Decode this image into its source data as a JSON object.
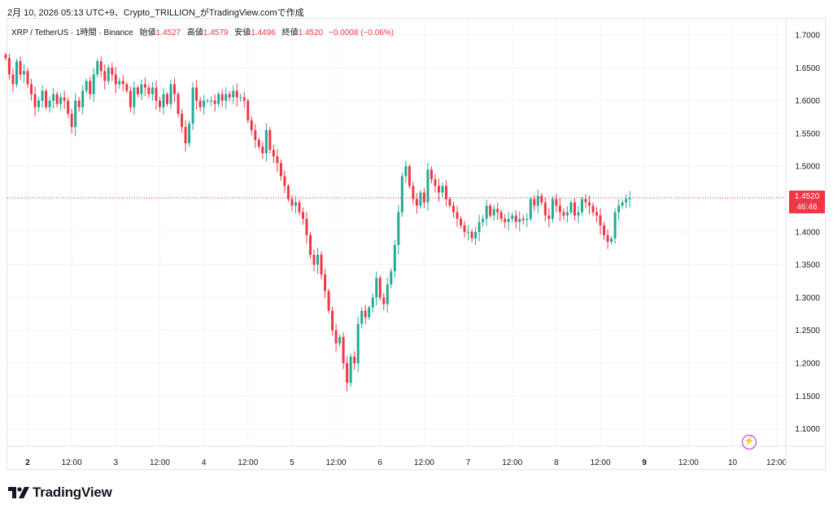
{
  "header": {
    "caption": "2月 10, 2026 05:13 UTC+9、Crypto_TRILLION_がTradingView.comで作成"
  },
  "legend": {
    "symbol": "XRP / TetherUS · 1時間 · Binance",
    "open_label": "始値",
    "open_value": "1.4527",
    "high_label": "高値",
    "high_value": "1.4579",
    "low_label": "安値",
    "low_value": "1.4496",
    "close_label": "終値",
    "close_value": "1.4520",
    "change": "−0.0008 (−0.06%)"
  },
  "price_tag": {
    "price": "1.4520",
    "countdown": "46:46"
  },
  "brand": {
    "name": "TradingView"
  },
  "colors": {
    "up": "#22ab94",
    "down": "#f23645",
    "grid": "#f0f3fa",
    "text": "#131722",
    "alert": "#b02dd9"
  },
  "icons": {
    "alert": "lightning-bolt-icon",
    "logo": "tradingview-logo-icon"
  },
  "chart_data": {
    "type": "candlestick",
    "interval": "1時間",
    "grid": true,
    "ylim": [
      1.08,
      1.715
    ],
    "y_ticks": [
      "1.7000",
      "1.6500",
      "1.6000",
      "1.5500",
      "1.5000",
      "1.4500",
      "1.4000",
      "1.3500",
      "1.3000",
      "1.2500",
      "1.2000",
      "1.1500",
      "1.1000"
    ],
    "x_ticks": [
      {
        "label": "2",
        "hour": 0,
        "bold": true
      },
      {
        "label": "12:00",
        "hour": 12
      },
      {
        "label": "3",
        "hour": 24
      },
      {
        "label": "12:00",
        "hour": 36
      },
      {
        "label": "4",
        "hour": 48
      },
      {
        "label": "12:00",
        "hour": 60
      },
      {
        "label": "5",
        "hour": 72
      },
      {
        "label": "12:00",
        "hour": 84
      },
      {
        "label": "6",
        "hour": 96
      },
      {
        "label": "12:00",
        "hour": 108
      },
      {
        "label": "7",
        "hour": 120
      },
      {
        "label": "12:00",
        "hour": 132
      },
      {
        "label": "8",
        "hour": 144
      },
      {
        "label": "12:00",
        "hour": 156
      },
      {
        "label": "9",
        "hour": 168,
        "bold": true
      },
      {
        "label": "12:00",
        "hour": 180
      },
      {
        "label": "10",
        "hour": 192
      },
      {
        "label": "12:00",
        "hour": 204
      }
    ],
    "last_price": 1.452,
    "first_hour": -6,
    "closes": [
      1.665,
      1.64,
      1.625,
      1.66,
      1.64,
      1.645,
      1.625,
      1.61,
      1.59,
      1.6,
      1.615,
      1.59,
      1.6,
      1.61,
      1.595,
      1.605,
      1.6,
      1.58,
      1.56,
      1.6,
      1.59,
      1.615,
      1.63,
      1.61,
      1.64,
      1.66,
      1.645,
      1.63,
      1.65,
      1.64,
      1.625,
      1.63,
      1.625,
      1.615,
      1.59,
      1.62,
      1.61,
      1.625,
      1.62,
      1.61,
      1.62,
      1.6,
      1.59,
      1.61,
      1.595,
      1.625,
      1.61,
      1.58,
      1.56,
      1.535,
      1.565,
      1.62,
      1.6,
      1.59,
      1.6,
      1.6,
      1.6,
      1.595,
      1.61,
      1.6,
      1.61,
      1.605,
      1.615,
      1.605,
      1.605,
      1.6,
      1.57,
      1.555,
      1.54,
      1.53,
      1.52,
      1.555,
      1.525,
      1.515,
      1.505,
      1.485,
      1.47,
      1.45,
      1.44,
      1.445,
      1.43,
      1.42,
      1.395,
      1.365,
      1.35,
      1.365,
      1.335,
      1.31,
      1.28,
      1.25,
      1.23,
      1.24,
      1.2,
      1.17,
      1.21,
      1.2,
      1.26,
      1.28,
      1.27,
      1.285,
      1.3,
      1.33,
      1.3,
      1.29,
      1.32,
      1.34,
      1.38,
      1.43,
      1.485,
      1.5,
      1.47,
      1.45,
      1.44,
      1.46,
      1.445,
      1.495,
      1.48,
      1.47,
      1.46,
      1.47,
      1.45,
      1.44,
      1.43,
      1.42,
      1.41,
      1.4,
      1.4,
      1.39,
      1.4,
      1.415,
      1.42,
      1.44,
      1.425,
      1.435,
      1.43,
      1.42,
      1.415,
      1.42,
      1.425,
      1.415,
      1.42,
      1.418,
      1.42,
      1.45,
      1.44,
      1.455,
      1.445,
      1.425,
      1.42,
      1.45,
      1.44,
      1.43,
      1.425,
      1.43,
      1.445,
      1.425,
      1.43,
      1.45,
      1.445,
      1.44,
      1.43,
      1.425,
      1.41,
      1.395,
      1.385,
      1.39,
      1.43,
      1.44,
      1.445,
      1.45,
      1.452
    ]
  }
}
